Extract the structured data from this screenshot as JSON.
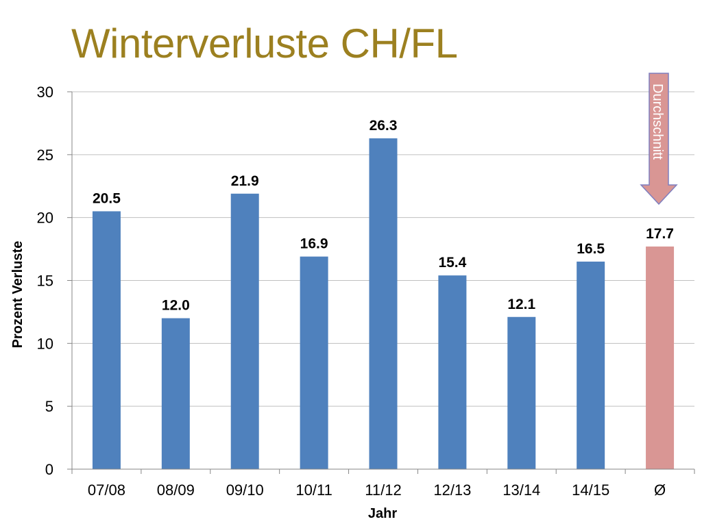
{
  "title": "Winterverluste CH/FL",
  "chart_data": {
    "type": "bar",
    "categories": [
      "07/08",
      "08/09",
      "09/10",
      "10/11",
      "11/12",
      "12/13",
      "13/14",
      "14/15",
      "Ø"
    ],
    "values": [
      20.5,
      12.0,
      21.9,
      16.9,
      26.3,
      15.4,
      12.1,
      16.5,
      17.7
    ],
    "data_labels": [
      "20.5",
      "12.0",
      "21.9",
      "16.9",
      "26.3",
      "15.4",
      "12.1",
      "16.5",
      "17.7"
    ],
    "xlabel": "Jahr",
    "ylabel": "Prozent Verluste",
    "ylim": [
      0,
      30
    ],
    "yticks": [
      "0",
      "5",
      "10",
      "15",
      "20",
      "25",
      "30"
    ],
    "grid": true,
    "legend": "none",
    "colors": {
      "bar": "#4f81bd",
      "highlight_bar": "#d99694",
      "gridline": "#bfbfbf",
      "title": "#9c8020"
    },
    "highlight_index": 8,
    "annotation": {
      "text": "Durchschnitt",
      "target_category": "Ø",
      "shape": "down-arrow",
      "fill": "#d99694",
      "stroke": "#7f7fbf"
    }
  }
}
